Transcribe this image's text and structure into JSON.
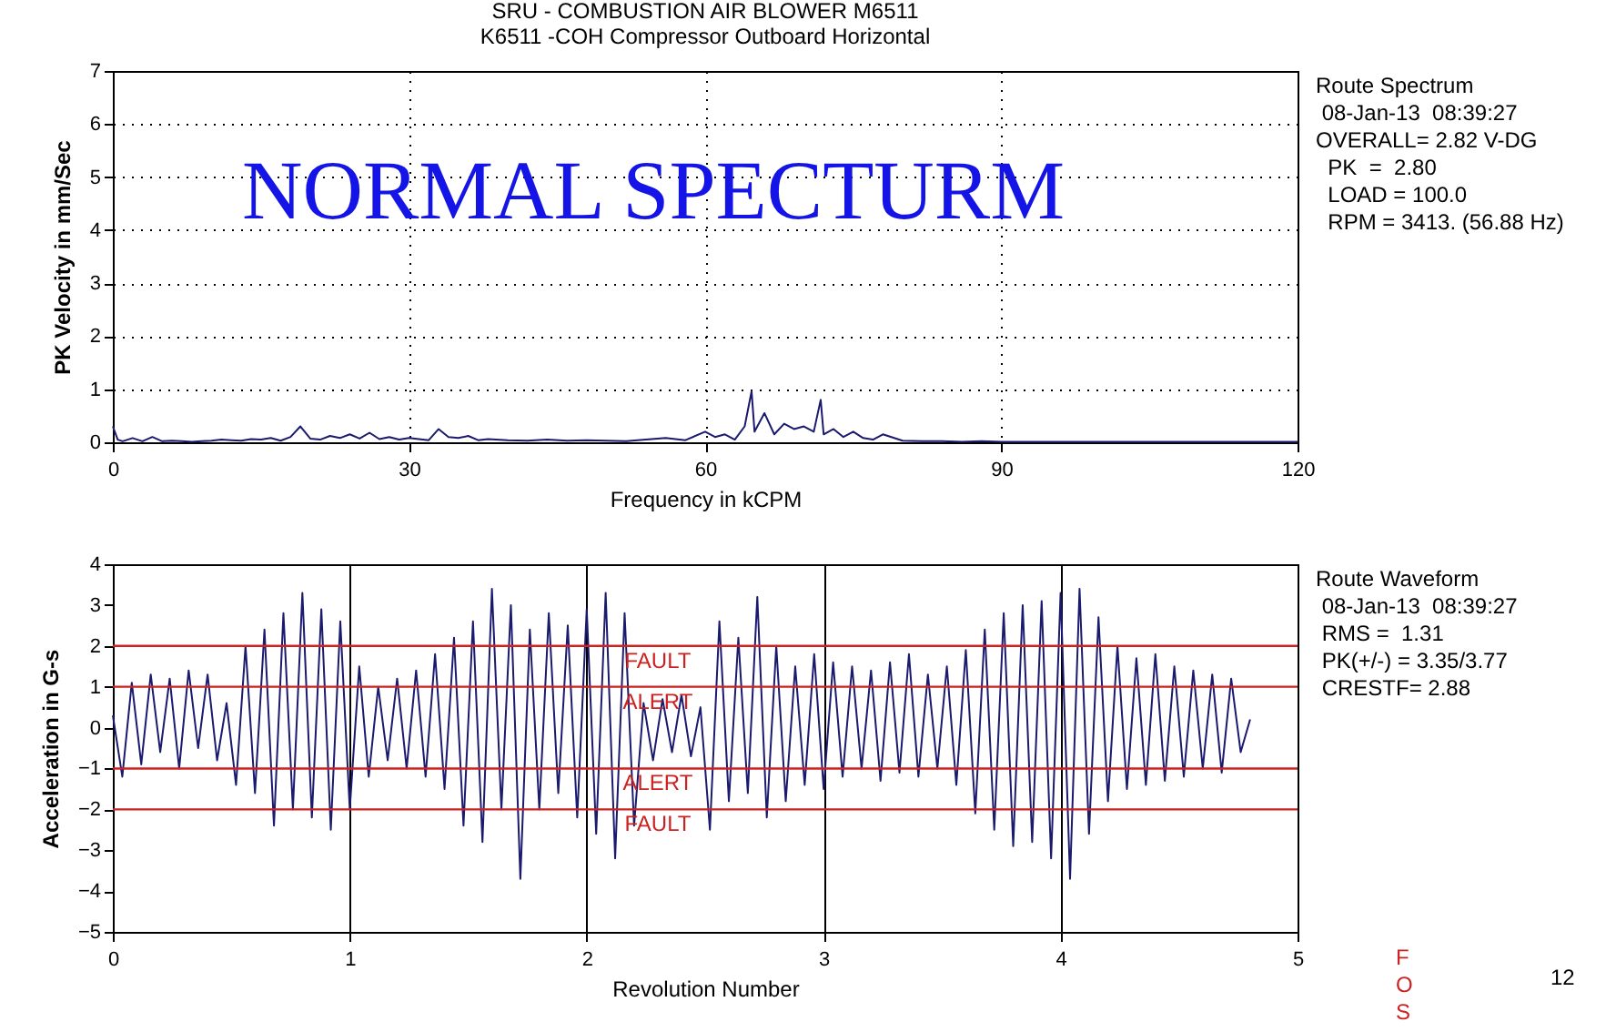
{
  "chart_data": [
    {
      "type": "line",
      "title": "SRU  - COMBUSTION AIR BLOWER M6511",
      "subtitle": "K6511     -COH   Compressor Outboard Horizontal",
      "xlabel": "Frequency in kCPM",
      "ylabel": "PK Velocity in mm/Sec",
      "annotations": [
        "NORMAL SPECTURM",
        "Route Spectrum",
        " 08-Jan-13  08:39:27",
        "OVERALL= 2.82 V-DG",
        "  PK  =  2.80",
        "  LOAD = 100.0",
        "  RPM = 3413. (56.88 Hz)"
      ],
      "x": [
        0,
        0.5,
        1,
        2,
        3,
        4,
        5,
        6,
        7,
        8,
        9,
        10,
        11,
        12,
        13,
        14,
        15,
        16,
        17,
        18,
        19,
        20,
        21,
        22,
        23,
        24,
        25,
        26,
        27,
        28,
        29,
        30,
        31,
        32,
        33,
        34,
        35,
        36,
        37,
        38,
        40,
        42,
        44,
        46,
        48,
        50,
        52,
        54,
        56,
        58,
        60,
        61,
        62,
        63,
        64,
        64.7,
        65,
        66,
        67,
        68,
        69,
        70,
        71,
        71.7,
        72,
        73,
        74,
        75,
        76,
        77,
        78,
        80,
        82,
        84,
        86,
        88,
        90,
        95,
        100,
        105,
        110,
        120
      ],
      "series": [
        {
          "color": "#1a1a6e",
          "values": [
            0.3,
            0.05,
            0.02,
            0.08,
            0.02,
            0.1,
            0.02,
            0.03,
            0.02,
            0.01,
            0.02,
            0.03,
            0.05,
            0.04,
            0.03,
            0.06,
            0.05,
            0.08,
            0.03,
            0.1,
            0.3,
            0.07,
            0.05,
            0.12,
            0.08,
            0.15,
            0.07,
            0.18,
            0.06,
            0.1,
            0.05,
            0.08,
            0.06,
            0.04,
            0.25,
            0.1,
            0.08,
            0.12,
            0.04,
            0.06,
            0.04,
            0.03,
            0.05,
            0.03,
            0.04,
            0.03,
            0.02,
            0.05,
            0.08,
            0.04,
            0.2,
            0.1,
            0.15,
            0.05,
            0.3,
            0.96,
            0.2,
            0.55,
            0.15,
            0.35,
            0.25,
            0.3,
            0.2,
            0.8,
            0.15,
            0.25,
            0.1,
            0.2,
            0.08,
            0.05,
            0.15,
            0.03,
            0.02,
            0.02,
            0.01,
            0.02,
            0.01,
            0.01,
            0.01,
            0.01,
            0.01,
            0.01
          ]
        }
      ],
      "xlim": [
        0,
        120
      ],
      "xticks": [
        0,
        30,
        60,
        90,
        120
      ],
      "ylim": [
        0,
        7
      ],
      "yticks": [
        0,
        1,
        2,
        3,
        4,
        5,
        6,
        7
      ],
      "grid": true,
      "marker": "none",
      "line_style": "solid"
    },
    {
      "type": "line",
      "xlabel": "Revolution Number",
      "ylabel": "Acceleration in G-s",
      "annotations": [
        "Route Waveform",
        " 08-Jan-13  08:39:27",
        " RMS =  1.31",
        " PK(+/-) = 3.35/3.77",
        " CRESTF= 2.88",
        "F",
        "O",
        "S",
        "12"
      ],
      "x": [
        0,
        0.04,
        0.08,
        0.12,
        0.16,
        0.2,
        0.24,
        0.28,
        0.32,
        0.36,
        0.4,
        0.44,
        0.48,
        0.52,
        0.56,
        0.6,
        0.64,
        0.68,
        0.72,
        0.76,
        0.8,
        0.84,
        0.88,
        0.92,
        0.96,
        1,
        1.04,
        1.08,
        1.12,
        1.16,
        1.2,
        1.24,
        1.28,
        1.32,
        1.36,
        1.4,
        1.44,
        1.48,
        1.52,
        1.56,
        1.6,
        1.64,
        1.68,
        1.72,
        1.76,
        1.8,
        1.84,
        1.88,
        1.92,
        1.96,
        2,
        2.04,
        2.08,
        2.12,
        2.16,
        2.2,
        2.24,
        2.28,
        2.32,
        2.36,
        2.4,
        2.44,
        2.48,
        2.52,
        2.56,
        2.6,
        2.64,
        2.68,
        2.72,
        2.76,
        2.8,
        2.84,
        2.88,
        2.92,
        2.96,
        3,
        3.04,
        3.08,
        3.12,
        3.16,
        3.2,
        3.24,
        3.28,
        3.32,
        3.36,
        3.4,
        3.44,
        3.48,
        3.52,
        3.56,
        3.6,
        3.64,
        3.68,
        3.72,
        3.76,
        3.8,
        3.84,
        3.88,
        3.92,
        3.96,
        4,
        4.04,
        4.08,
        4.12,
        4.16,
        4.2,
        4.24,
        4.28,
        4.32,
        4.36,
        4.4,
        4.44,
        4.48,
        4.52,
        4.56,
        4.6,
        4.64,
        4.68,
        4.72,
        4.76,
        4.8
      ],
      "series": [
        {
          "color": "#1a1a6e",
          "values": [
            0.3,
            -1.2,
            1.1,
            -0.9,
            1.3,
            -0.6,
            1.2,
            -1.0,
            1.4,
            -0.5,
            1.3,
            -0.8,
            0.6,
            -1.4,
            2.0,
            -1.6,
            2.4,
            -2.4,
            2.8,
            -2.0,
            3.3,
            -2.2,
            2.9,
            -2.5,
            2.6,
            -2.0,
            1.5,
            -1.2,
            1.0,
            -0.8,
            1.2,
            -1.0,
            1.4,
            -1.2,
            1.8,
            -1.5,
            2.2,
            -2.4,
            2.6,
            -2.8,
            3.4,
            -2.0,
            3.0,
            -3.7,
            2.4,
            -2.0,
            2.8,
            -1.6,
            2.5,
            -2.2,
            2.9,
            -2.6,
            3.3,
            -3.2,
            2.8,
            -2.4,
            0.6,
            -0.8,
            0.7,
            -0.6,
            0.8,
            -0.7,
            0.5,
            -2.5,
            2.6,
            -1.8,
            2.2,
            -1.6,
            3.2,
            -2.2,
            2.0,
            -1.8,
            1.5,
            -1.4,
            1.8,
            -1.5,
            1.6,
            -1.2,
            1.5,
            -1.0,
            1.4,
            -1.3,
            1.6,
            -1.1,
            1.8,
            -1.2,
            1.3,
            -1.0,
            1.5,
            -1.4,
            1.9,
            -2.1,
            2.4,
            -2.5,
            2.8,
            -2.9,
            3.0,
            -2.8,
            3.1,
            -3.2,
            3.3,
            -3.7,
            3.4,
            -2.6,
            2.7,
            -1.8,
            2.0,
            -1.5,
            1.7,
            -1.4,
            1.8,
            -1.3,
            1.5,
            -1.2,
            1.4,
            -1.0,
            1.3,
            -1.1,
            1.2,
            -0.6,
            0.2
          ]
        }
      ],
      "xlim": [
        0,
        5
      ],
      "xticks": [
        0,
        1,
        2,
        3,
        4,
        5
      ],
      "ylim": [
        -5,
        4
      ],
      "yticks": [
        -5,
        -4,
        -3,
        -2,
        -1,
        0,
        1,
        2,
        3,
        4
      ],
      "grid": "x",
      "marker": "none",
      "line_style": "solid",
      "ref_lines": [
        {
          "axis": "y",
          "value": 2,
          "label": "FAULT",
          "color": "#cc2222"
        },
        {
          "axis": "y",
          "value": 1,
          "label": "ALERT",
          "color": "#cc2222"
        },
        {
          "axis": "y",
          "value": -1,
          "label": "ALERT",
          "color": "#cc2222"
        },
        {
          "axis": "y",
          "value": -2,
          "label": "FAULT",
          "color": "#cc2222"
        }
      ]
    }
  ]
}
